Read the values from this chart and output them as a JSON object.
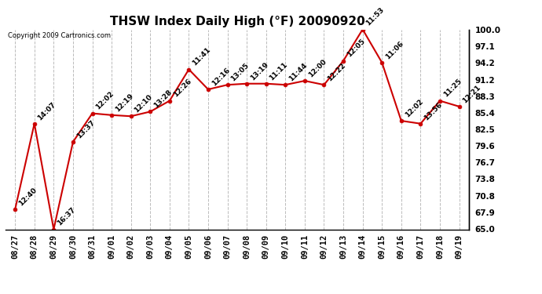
{
  "title": "THSW Index Daily High (°F) 20090920",
  "copyright": "Copyright 2009 Cartronics.com",
  "x_labels": [
    "08/27",
    "08/28",
    "08/29",
    "08/30",
    "08/31",
    "09/01",
    "09/02",
    "09/03",
    "09/04",
    "09/05",
    "09/06",
    "09/07",
    "09/08",
    "09/09",
    "09/10",
    "09/11",
    "09/12",
    "09/13",
    "09/14",
    "09/15",
    "09/16",
    "09/17",
    "09/18",
    "09/19"
  ],
  "y_values": [
    68.5,
    83.5,
    65.0,
    80.3,
    85.3,
    85.0,
    84.8,
    85.6,
    87.5,
    93.0,
    89.5,
    90.3,
    90.5,
    90.5,
    90.3,
    91.0,
    90.3,
    94.5,
    100.0,
    94.2,
    84.0,
    83.5,
    87.5,
    86.5
  ],
  "time_labels": [
    "12:40",
    "14:07",
    "16:37",
    "13:37",
    "12:02",
    "12:19",
    "12:10",
    "13:28",
    "12:26",
    "11:41",
    "12:16",
    "13:05",
    "13:19",
    "11:11",
    "11:44",
    "12:00",
    "12:22",
    "12:05",
    "11:53",
    "11:06",
    "12:02",
    "13:56",
    "11:25",
    "12:21"
  ],
  "y_min": 65.0,
  "y_max": 100.0,
  "y_ticks": [
    65.0,
    67.9,
    70.8,
    73.8,
    76.7,
    79.6,
    82.5,
    85.4,
    88.3,
    91.2,
    94.2,
    97.1,
    100.0
  ],
  "line_color": "#cc0000",
  "marker_color": "#cc0000",
  "bg_color": "#ffffff",
  "grid_color": "#bbbbbb",
  "title_fontsize": 11,
  "label_fontsize": 6.5,
  "tick_fontsize": 7.5
}
